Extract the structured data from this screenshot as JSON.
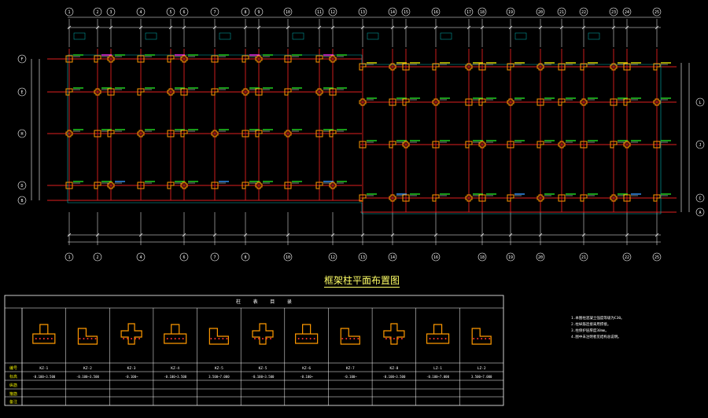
{
  "drawing_title": "框架柱平面布置图",
  "grid_top": [
    "1",
    "2",
    "3",
    "4",
    "5",
    "6",
    "7",
    "8",
    "9",
    "10",
    "11",
    "12",
    "13",
    "14",
    "15",
    "16",
    "17",
    "18",
    "19",
    "20",
    "21",
    "22",
    "23",
    "24",
    "25"
  ],
  "grid_bottom": [
    "1",
    "2",
    "4",
    "6",
    "7",
    "8",
    "10",
    "12",
    "13",
    "14",
    "16",
    "18",
    "19",
    "20",
    "21",
    "22",
    "25"
  ],
  "grid_left": [
    "F",
    "E",
    "H",
    "D",
    "B"
  ],
  "grid_right": [
    "L",
    "J",
    "C",
    "A"
  ],
  "table": {
    "header": "柱 表 目 录",
    "row_labels": [
      "编号",
      "标高",
      "纵筋",
      "箍筋",
      "备注"
    ],
    "columns": [
      {
        "id": "KZ-1",
        "elev": "-0.100~3.500"
      },
      {
        "id": "KZ-2",
        "elev": "-0.100~3.500"
      },
      {
        "id": "KZ-3",
        "elev": "-0.100~"
      },
      {
        "id": "KZ-4",
        "elev": "-0.100~3.500"
      },
      {
        "id": "KZ-5",
        "elev": "3.500~7.000"
      },
      {
        "id": "KZ-5",
        "elev": "-0.100~3.500"
      },
      {
        "id": "KZ-6",
        "elev": "-0.100~"
      },
      {
        "id": "KZ-7",
        "elev": "-0.100~"
      },
      {
        "id": "KZ-8",
        "elev": "-0.100~3.500"
      },
      {
        "id": "LZ-1",
        "elev": "-0.100~7.000"
      },
      {
        "id": "LZ-2",
        "elev": "3.500~7.000"
      }
    ]
  },
  "notes": [
    "1.本图柱混凝土强度等级为C30。",
    "2.柱纵筋连接采用焊接。",
    "3.柱保护层厚度30mm。",
    "4.图中未注明者见结构总说明。"
  ],
  "colors": {
    "axis": "#e02020",
    "dim": "#ffffff",
    "column": "#ff9900",
    "label_green": "#22dd22",
    "label_yellow": "#e8e800",
    "label_magenta": "#ff33ff",
    "label_blue": "#3399ff",
    "frame_cyan": "#00b4b4"
  }
}
